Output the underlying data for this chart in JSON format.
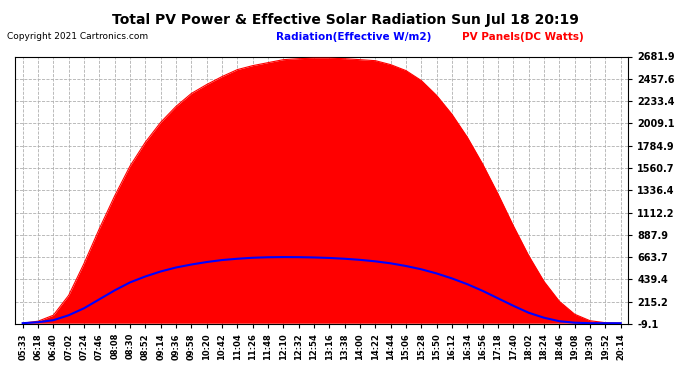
{
  "title": "Total PV Power & Effective Solar Radiation Sun Jul 18 20:19",
  "copyright": "Copyright 2021 Cartronics.com",
  "legend_radiation": "Radiation(Effective W/m2)",
  "legend_pv": "PV Panels(DC Watts)",
  "yticks": [
    -9.1,
    215.2,
    439.4,
    663.7,
    887.9,
    1112.2,
    1336.4,
    1560.7,
    1784.9,
    2009.1,
    2233.4,
    2457.6,
    2681.9
  ],
  "ymin": -9.1,
  "ymax": 2681.9,
  "xtick_labels": [
    "05:33",
    "06:18",
    "06:40",
    "07:02",
    "07:24",
    "07:46",
    "08:08",
    "08:30",
    "08:52",
    "09:14",
    "09:36",
    "09:58",
    "10:20",
    "10:42",
    "11:04",
    "11:26",
    "11:48",
    "12:10",
    "12:32",
    "12:54",
    "13:16",
    "13:38",
    "14:00",
    "14:22",
    "14:44",
    "15:06",
    "15:28",
    "15:50",
    "16:12",
    "16:34",
    "16:56",
    "17:18",
    "17:40",
    "18:02",
    "18:24",
    "18:46",
    "19:08",
    "19:30",
    "19:52",
    "20:14"
  ],
  "bg_color": "#ffffff",
  "grid_color": "#b0b0b0",
  "pv_fill_color": "#ff0000",
  "radiation_line_color": "#0000ff",
  "title_color": "#000000",
  "copyright_color": "#000000",
  "legend_radiation_color": "#0000ff",
  "legend_pv_color": "#ff0000",
  "pv_values": [
    0,
    20,
    80,
    280,
    600,
    950,
    1280,
    1580,
    1820,
    2020,
    2180,
    2310,
    2400,
    2480,
    2550,
    2590,
    2620,
    2650,
    2660,
    2665,
    2665,
    2660,
    2650,
    2640,
    2600,
    2540,
    2440,
    2290,
    2100,
    1870,
    1600,
    1300,
    980,
    680,
    420,
    220,
    90,
    25,
    5,
    0
  ],
  "rad_values": [
    0,
    10,
    30,
    80,
    150,
    240,
    330,
    410,
    470,
    520,
    560,
    590,
    615,
    635,
    648,
    658,
    663,
    665,
    664,
    661,
    656,
    648,
    637,
    622,
    602,
    575,
    542,
    500,
    450,
    392,
    325,
    250,
    175,
    105,
    55,
    20,
    5,
    0,
    0,
    0
  ]
}
